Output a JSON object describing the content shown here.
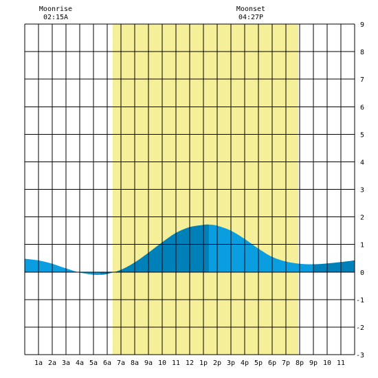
{
  "moon": {
    "rise_label": "Moonrise",
    "rise_time": "02:15A",
    "set_label": "Moonset",
    "set_time": "04:27P"
  },
  "colors": {
    "daylight": "#f6ef9a",
    "tide_light": "#0a9ee0",
    "tide_dark": "#0080b8",
    "grid": "#000000",
    "background": "#ffffff"
  },
  "chart_data": {
    "type": "area",
    "title": "",
    "xlabel": "",
    "ylabel": "",
    "ylim": [
      -3,
      9
    ],
    "xlim": [
      0,
      24
    ],
    "grid": true,
    "legend": "none",
    "x_tick_labels": [
      "1a",
      "2a",
      "3a",
      "4a",
      "5a",
      "6a",
      "7a",
      "8a",
      "9a",
      "10",
      "11",
      "12",
      "1p",
      "2p",
      "3p",
      "4p",
      "5p",
      "6p",
      "7p",
      "8p",
      "9p",
      "10",
      "11"
    ],
    "y_tick_labels": [
      "9",
      "8",
      "7",
      "6",
      "5",
      "4",
      "3",
      "2",
      "1",
      "0",
      "-1",
      "-2",
      "-3"
    ],
    "daylight_hours": [
      6.4,
      19.9
    ],
    "moonrise_hour": 2.25,
    "moonset_hour": 16.45,
    "tide_extremes": [
      {
        "hour": 5.5,
        "height": -0.1,
        "kind": "low"
      },
      {
        "hour": 13.4,
        "height": 1.7,
        "kind": "high"
      },
      {
        "hour": 21.0,
        "height": 0.3,
        "kind": "low"
      }
    ],
    "series": [
      {
        "x": [
          0,
          1,
          2,
          3,
          4,
          5,
          5.5,
          6,
          7,
          8,
          9,
          10,
          11,
          12,
          13,
          13.4,
          14,
          15,
          16,
          17,
          18,
          19,
          20,
          21,
          22,
          23,
          24
        ],
        "values": [
          0.48,
          0.42,
          0.3,
          0.13,
          -0.02,
          -0.1,
          -0.1,
          -0.07,
          0.08,
          0.35,
          0.7,
          1.08,
          1.42,
          1.63,
          1.71,
          1.72,
          1.68,
          1.5,
          1.2,
          0.85,
          0.55,
          0.38,
          0.3,
          0.28,
          0.31,
          0.36,
          0.42
        ]
      }
    ]
  }
}
